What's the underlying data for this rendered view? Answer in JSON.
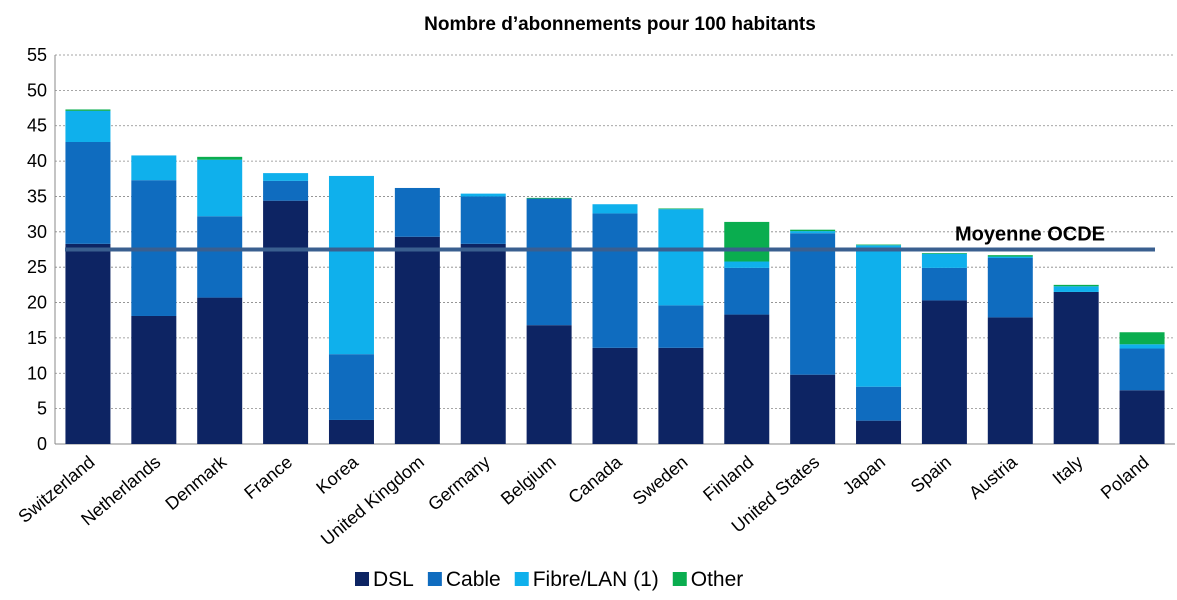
{
  "chart_data": {
    "type": "stacked-bar",
    "title": "Nombre d’abonnements pour 100 habitants",
    "categories": [
      "Switzerland",
      "Netherlands",
      "Denmark",
      "France",
      "Korea",
      "United Kingdom",
      "Germany",
      "Belgium",
      "Canada",
      "Sweden",
      "Finland",
      "United States",
      "Japan",
      "Spain",
      "Austria",
      "Italy",
      "Poland"
    ],
    "series": [
      {
        "name": "DSL",
        "color": "#0d2463",
        "values": [
          28.3,
          18.1,
          20.7,
          34.4,
          3.4,
          29.3,
          28.3,
          16.8,
          13.6,
          13.6,
          18.3,
          9.8,
          3.3,
          20.3,
          17.9,
          21.5,
          7.6
        ]
      },
      {
        "name": "Cable",
        "color": "#0f6cbf",
        "values": [
          14.4,
          19.2,
          11.5,
          2.8,
          9.3,
          6.9,
          6.7,
          17.9,
          19.0,
          6.0,
          6.6,
          20.0,
          4.8,
          4.6,
          8.4,
          0,
          5.9
        ]
      },
      {
        "name": "Fibre/LAN (1)",
        "color": "#0fb0ec",
        "values": [
          4.4,
          3.5,
          8.0,
          1.1,
          25.2,
          0,
          0.4,
          0,
          1.3,
          13.6,
          0.9,
          0.3,
          20.0,
          2.0,
          0.2,
          0.8,
          0.6
        ]
      },
      {
        "name": "Other",
        "color": "#0aad4f",
        "values": [
          0.2,
          0,
          0.4,
          0,
          0,
          0,
          0,
          0.1,
          0,
          0.1,
          5.6,
          0.2,
          0.1,
          0.1,
          0.2,
          0.2,
          1.7
        ]
      }
    ],
    "reference_line": {
      "value": 27.5,
      "label": "Moyenne OCDE",
      "color": "#3a5f8f"
    },
    "ylim": [
      0,
      55
    ],
    "yticks": [
      0,
      5,
      10,
      15,
      20,
      25,
      30,
      35,
      40,
      45,
      50,
      55
    ],
    "grid": true,
    "legend": "bottom"
  }
}
